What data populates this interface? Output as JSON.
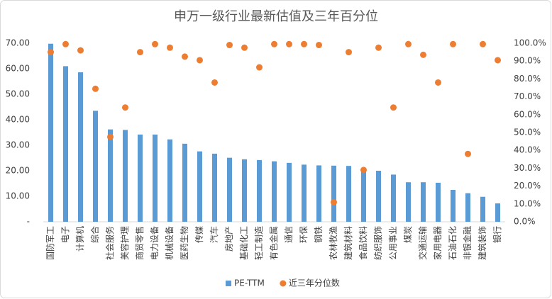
{
  "chart_data": {
    "type": "bar-scatter",
    "title": "申万一级行业最新估值及三年百分位",
    "categories": [
      "国防军工",
      "电子",
      "计算机",
      "综合",
      "社会服务",
      "美容护理",
      "商贸零售",
      "电力设备",
      "机械设备",
      "医药生物",
      "传媒",
      "汽车",
      "房地产",
      "基础化工",
      "轻工制造",
      "有色金属",
      "通信",
      "环保",
      "钢铁",
      "农林牧渔",
      "建筑材料",
      "食品饮料",
      "纺织服饰",
      "公用事业",
      "煤炭",
      "交通运输",
      "家用电器",
      "石油石化",
      "非银金融",
      "建筑装饰",
      "银行"
    ],
    "series": [
      {
        "name": "PE-TTM",
        "type": "bar",
        "color": "#5b9bd5",
        "values": [
          69.8,
          61,
          58.6,
          43.5,
          36.2,
          36,
          34.2,
          34.2,
          32.3,
          30.6,
          27.6,
          26.7,
          25.1,
          24.5,
          24.2,
          23.7,
          23.1,
          22.4,
          22.1,
          22,
          21.9,
          20.6,
          20,
          18.5,
          15.5,
          15.5,
          15.3,
          12.5,
          11.2,
          9.8,
          7.2
        ]
      },
      {
        "name": "近三年分位数",
        "type": "scatter",
        "axis": "y2",
        "color": "#ed7d31",
        "values": [
          95,
          99.5,
          96,
          74.5,
          47.5,
          64,
          95,
          99.5,
          97.5,
          92.5,
          90.5,
          78,
          99,
          97.5,
          86.5,
          99.5,
          99.5,
          99.5,
          99,
          11,
          95,
          29,
          97.5,
          64,
          99.5,
          93.5,
          78,
          99.5,
          38,
          99.5,
          90.5
        ]
      }
    ],
    "ylim": [
      0,
      70
    ],
    "yticks": [
      {
        "value": 0,
        "label": "-"
      },
      {
        "value": 10,
        "label": "10.00"
      },
      {
        "value": 20,
        "label": "20.00"
      },
      {
        "value": 30,
        "label": "30.00"
      },
      {
        "value": 40,
        "label": "40.00"
      },
      {
        "value": 50,
        "label": "50.00"
      },
      {
        "value": 60,
        "label": "60.00"
      },
      {
        "value": 70,
        "label": "70.00"
      }
    ],
    "y2lim": [
      0,
      100
    ],
    "y2ticks": [
      {
        "value": 0,
        "label": "0.0%"
      },
      {
        "value": 10,
        "label": "10.0%"
      },
      {
        "value": 20,
        "label": "20.0%"
      },
      {
        "value": 30,
        "label": "30.0%"
      },
      {
        "value": 40,
        "label": "40.0%"
      },
      {
        "value": 50,
        "label": "50.0%"
      },
      {
        "value": 60,
        "label": "60.0%"
      },
      {
        "value": 70,
        "label": "70.0%"
      },
      {
        "value": 80,
        "label": "80.0%"
      },
      {
        "value": 90,
        "label": "90.0%"
      },
      {
        "value": 100,
        "label": "100.0%"
      }
    ],
    "legend": "bottom"
  }
}
